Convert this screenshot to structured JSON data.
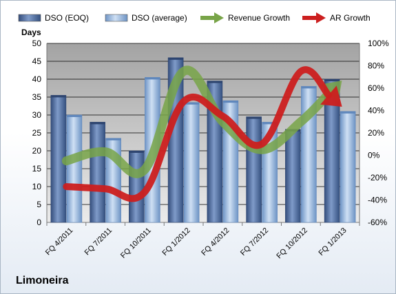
{
  "company": "Limoneira",
  "chart_data": {
    "type": "bar",
    "categories": [
      "FQ 4/2011",
      "FQ 7/2011",
      "FQ 10/2011",
      "FQ 1/2012",
      "FQ 4/2012",
      "FQ 7/2012",
      "FQ 10/2012",
      "FQ 1/2013"
    ],
    "ylabel": "Days",
    "ylim": [
      0,
      50
    ],
    "yticks": [
      0,
      5,
      10,
      15,
      20,
      25,
      30,
      35,
      40,
      45,
      50
    ],
    "y2lim": [
      -60,
      100
    ],
    "y2ticks": [
      "-60%",
      "-40%",
      "-20%",
      "0%",
      "20%",
      "40%",
      "60%",
      "80%",
      "100%"
    ],
    "y2tick_values": [
      -60,
      -40,
      -20,
      0,
      20,
      40,
      60,
      80,
      100
    ],
    "grid": true,
    "legend_position": "top",
    "series": [
      {
        "name": "DSO (EOQ)",
        "kind": "bar",
        "axis": "left",
        "color": "#4f6a9a",
        "values": [
          35.5,
          28,
          20,
          46,
          39.5,
          29.5,
          26,
          40
        ]
      },
      {
        "name": "DSO (average)",
        "kind": "bar",
        "axis": "left",
        "color": "#93b4dc",
        "values": [
          30,
          23.5,
          40.5,
          33.5,
          34,
          28,
          38,
          31
        ]
      },
      {
        "name": "Revenue Growth",
        "kind": "line",
        "axis": "right",
        "color": "#78a448",
        "values": [
          -5,
          3,
          -13,
          75,
          30,
          5,
          30,
          65
        ]
      },
      {
        "name": "AR Growth",
        "kind": "line",
        "axis": "right",
        "color": "#cc1f1f",
        "values": [
          -28,
          -30,
          -33,
          48,
          35,
          10,
          75,
          45
        ]
      }
    ]
  }
}
